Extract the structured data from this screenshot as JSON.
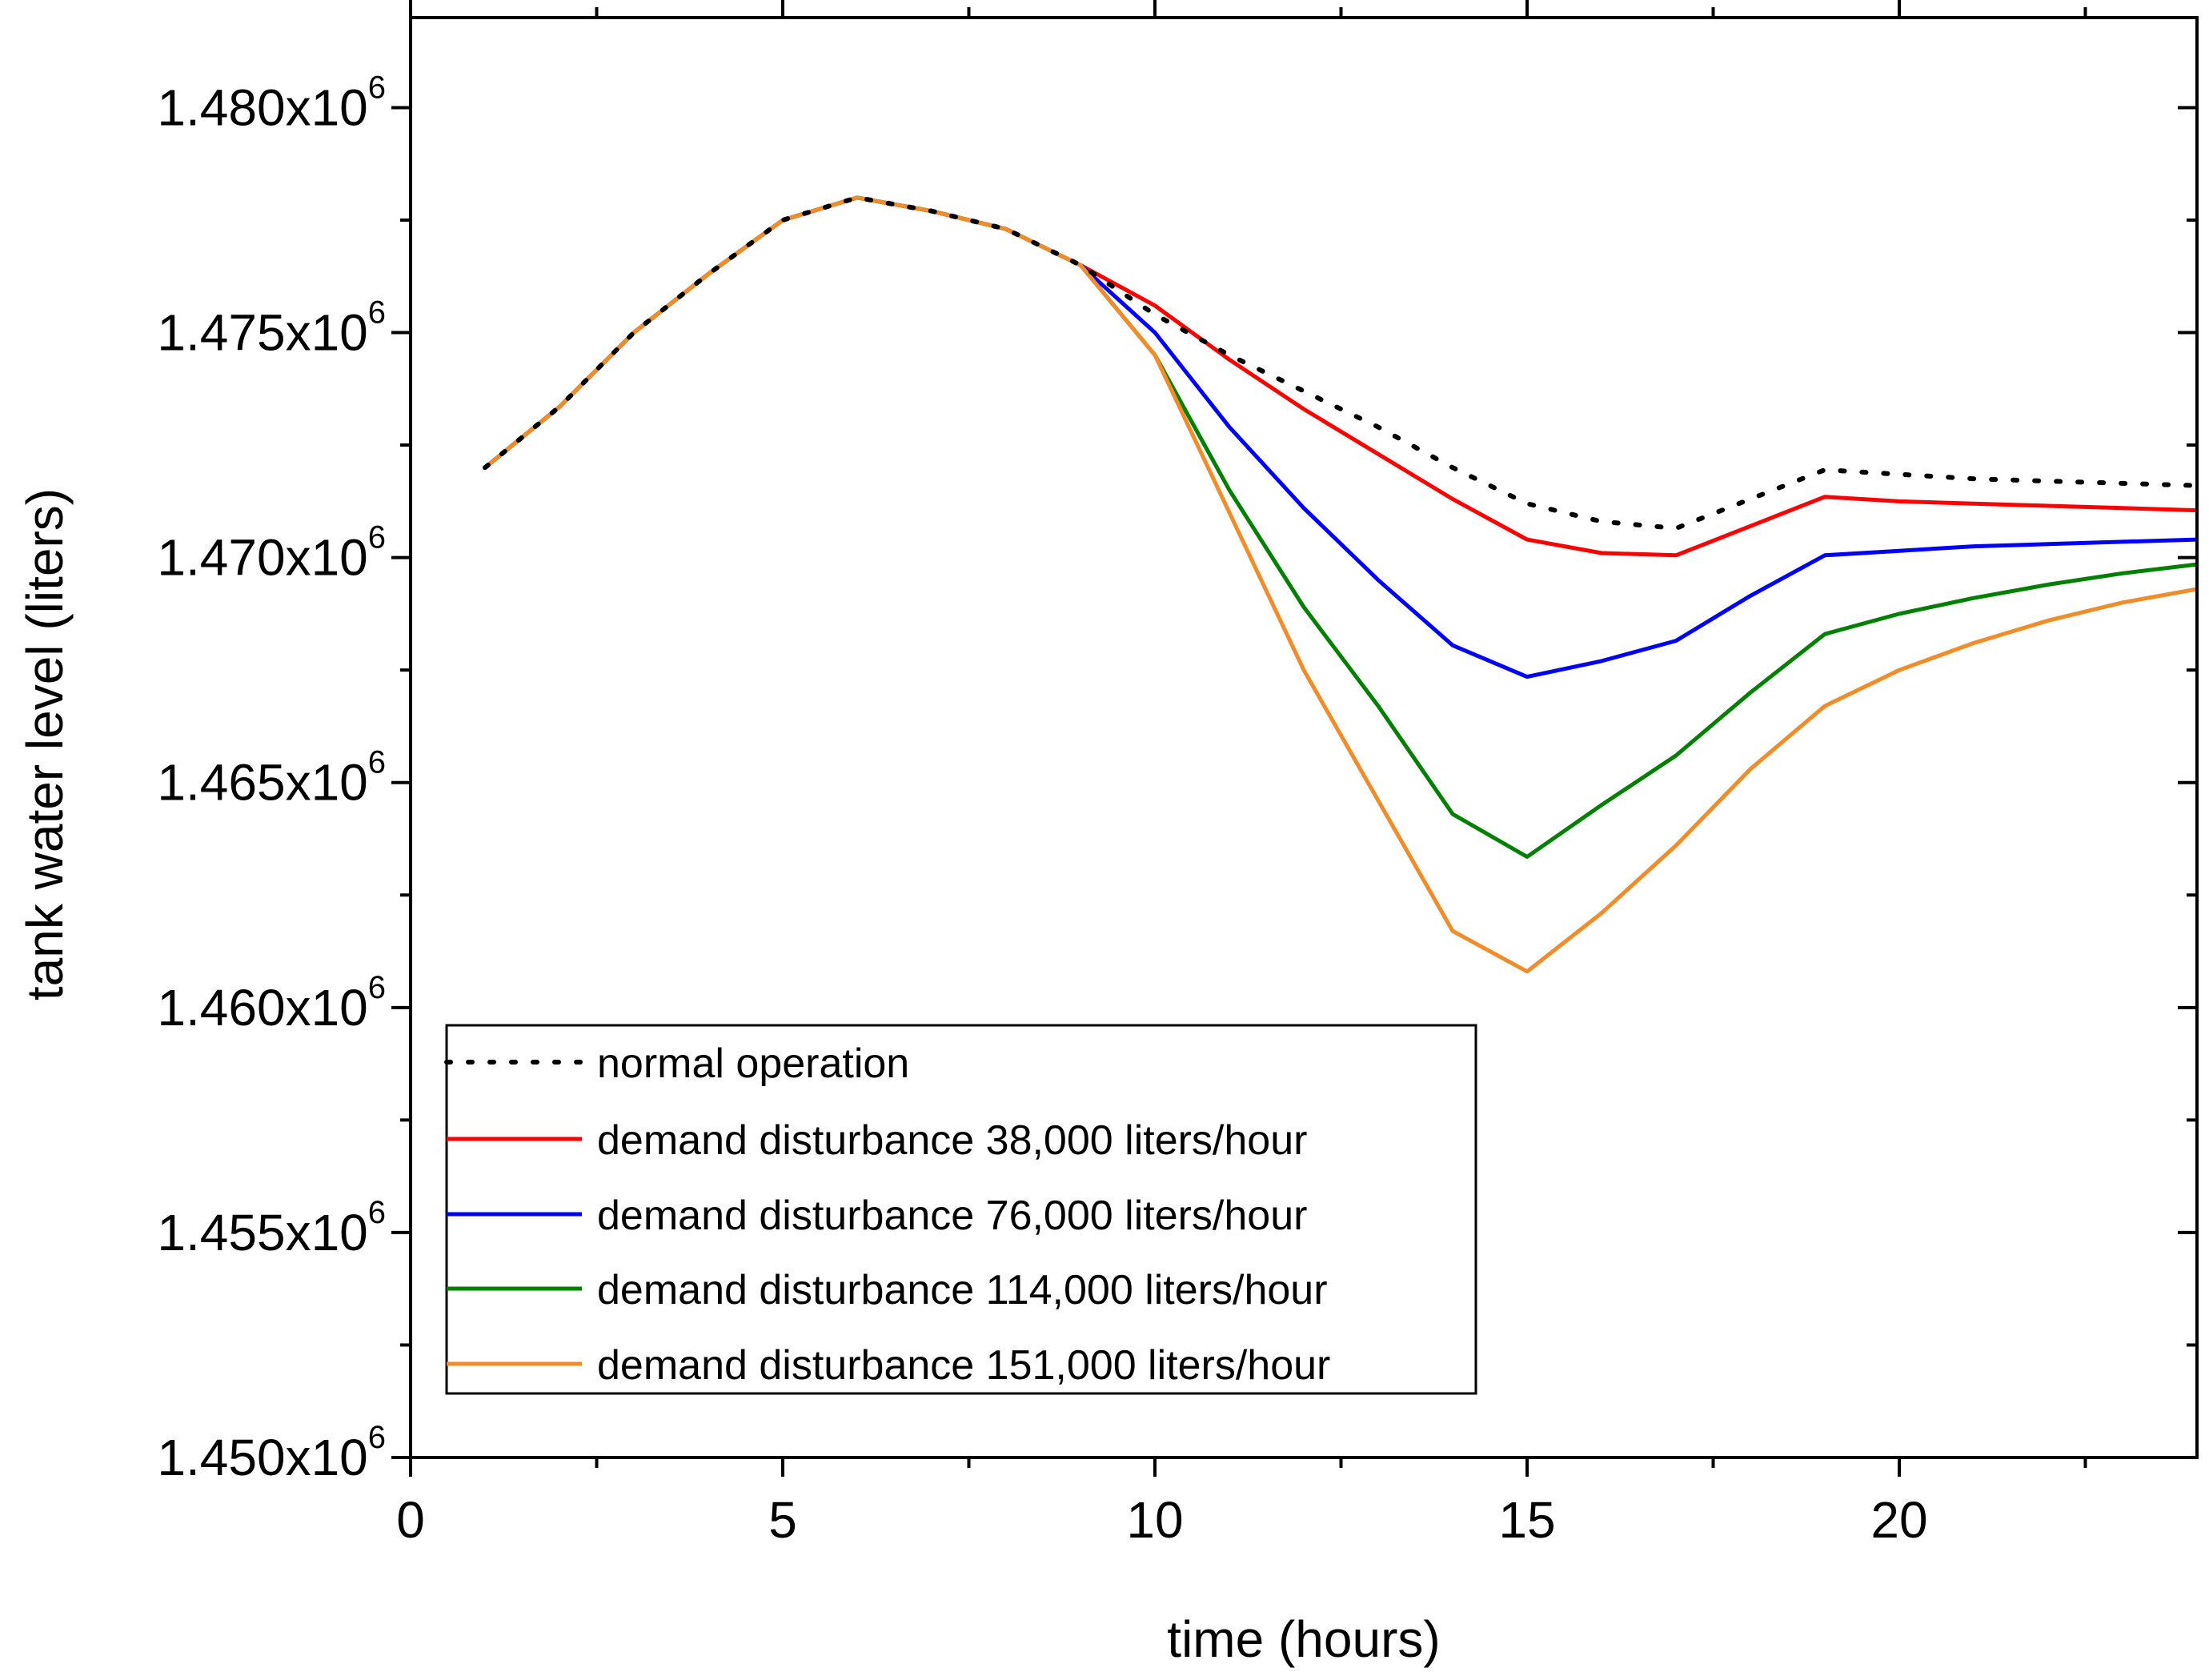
{
  "chart_data": {
    "type": "line",
    "title": "",
    "xlabel": "time (hours)",
    "ylabel": "tank water level (liters)",
    "xlim": [
      0,
      24
    ],
    "ylim": [
      1450000,
      1482000
    ],
    "x_ticks": [
      0,
      5,
      10,
      15,
      20
    ],
    "x_tick_labels": [
      "0",
      "5",
      "10",
      "15",
      "20"
    ],
    "x_minor_ticks": [
      2.5,
      7.5,
      12.5,
      17.5,
      22.5
    ],
    "y_ticks": [
      1450000,
      1455000,
      1460000,
      1465000,
      1470000,
      1475000,
      1480000
    ],
    "y_tick_labels": [
      {
        "mantissa": "1.450x10",
        "exp": "6"
      },
      {
        "mantissa": "1.455x10",
        "exp": "6"
      },
      {
        "mantissa": "1.460x10",
        "exp": "6"
      },
      {
        "mantissa": "1.465x10",
        "exp": "6"
      },
      {
        "mantissa": "1.470x10",
        "exp": "6"
      },
      {
        "mantissa": "1.475x10",
        "exp": "6"
      },
      {
        "mantissa": "1.480x10",
        "exp": "6"
      }
    ],
    "y_minor_ticks": [
      1452500,
      1457500,
      1462500,
      1467500,
      1472500,
      1477500
    ],
    "grid": false,
    "legend_position": "bottom-left",
    "series": [
      {
        "name": "normal operation",
        "color": "#000000",
        "style": "dotted",
        "x": [
          1,
          2,
          3,
          4,
          5,
          6,
          7,
          8,
          9,
          10,
          11,
          12,
          13,
          14,
          15,
          16,
          17,
          18,
          19,
          20,
          21,
          22,
          23,
          24
        ],
        "y": [
          1472000,
          1473350,
          1475000,
          1476300,
          1477500,
          1478000,
          1477700,
          1477300,
          1476500,
          1475400,
          1474500,
          1473700,
          1472900,
          1472000,
          1471200,
          1470800,
          1470650,
          1471300,
          1471950,
          1471850,
          1471750,
          1471700,
          1471650,
          1471600
        ]
      },
      {
        "name": "demand disturbance 38,000 liters/hour",
        "color": "#ff0000",
        "style": "solid",
        "x": [
          1,
          2,
          3,
          4,
          5,
          6,
          7,
          8,
          9,
          10,
          11,
          12,
          13,
          14,
          15,
          16,
          17,
          18,
          19,
          20,
          21,
          22,
          23,
          24
        ],
        "y": [
          1472000,
          1473350,
          1475000,
          1476300,
          1477500,
          1478000,
          1477700,
          1477300,
          1476500,
          1475600,
          1474400,
          1473300,
          1472300,
          1471300,
          1470400,
          1470100,
          1470050,
          1470700,
          1471350,
          1471250,
          1471200,
          1471150,
          1471100,
          1471050
        ]
      },
      {
        "name": "demand disturbance 76,000 liters/hour",
        "color": "#0000ff",
        "style": "solid",
        "x": [
          1,
          2,
          3,
          4,
          5,
          6,
          7,
          8,
          9,
          10,
          11,
          12,
          13,
          14,
          15,
          16,
          17,
          18,
          19,
          20,
          21,
          22,
          23,
          24
        ],
        "y": [
          1472000,
          1473350,
          1475000,
          1476300,
          1477500,
          1478000,
          1477700,
          1477300,
          1476500,
          1475000,
          1472900,
          1471100,
          1469500,
          1468050,
          1467350,
          1467700,
          1468150,
          1469150,
          1470050,
          1470150,
          1470250,
          1470300,
          1470350,
          1470400
        ]
      },
      {
        "name": "demand disturbance 114,000 liters/hour",
        "color": "#008000",
        "style": "solid",
        "x": [
          1,
          2,
          3,
          4,
          5,
          6,
          7,
          8,
          9,
          10,
          11,
          12,
          13,
          14,
          15,
          16,
          17,
          18,
          19,
          20,
          21,
          22,
          23,
          24
        ],
        "y": [
          1472000,
          1473350,
          1475000,
          1476300,
          1477500,
          1478000,
          1477700,
          1477300,
          1476500,
          1474500,
          1471500,
          1468900,
          1466700,
          1464300,
          1463350,
          1464500,
          1465600,
          1467000,
          1468300,
          1468750,
          1469100,
          1469400,
          1469650,
          1469850
        ]
      },
      {
        "name": "demand disturbance 151,000 liters/hour",
        "color": "#f28c28",
        "style": "solid",
        "x": [
          1,
          2,
          3,
          4,
          5,
          6,
          7,
          8,
          9,
          10,
          11,
          12,
          13,
          14,
          15,
          16,
          17,
          18,
          19,
          20,
          21,
          22,
          23,
          24
        ],
        "y": [
          1472000,
          1473350,
          1475000,
          1476300,
          1477500,
          1478000,
          1477700,
          1477300,
          1476500,
          1474500,
          1471000,
          1467500,
          1464600,
          1461700,
          1460800,
          1462100,
          1463600,
          1465300,
          1466700,
          1467500,
          1468100,
          1468600,
          1469000,
          1469300
        ]
      }
    ]
  }
}
